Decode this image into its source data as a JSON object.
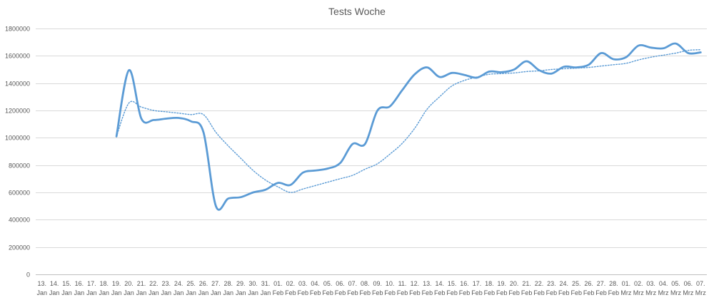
{
  "chart_data": {
    "type": "line",
    "title": "Tests Woche",
    "xlabel": "",
    "ylabel": "",
    "ylim": [
      0,
      1800000
    ],
    "yticks": [
      0,
      200000,
      400000,
      600000,
      800000,
      1000000,
      1200000,
      1400000,
      1600000,
      1800000
    ],
    "ytick_labels": [
      "0",
      "200000",
      "400000",
      "600000",
      "800000",
      "1000000",
      "1200000",
      "1400000",
      "1600000",
      "1800000"
    ],
    "grid": "horizontal",
    "legend": "none",
    "categories": [
      "13. Jan",
      "14. Jan",
      "15. Jan",
      "16. Jan",
      "17. Jan",
      "18. Jan",
      "19. Jan",
      "20. Jan",
      "21. Jan",
      "22. Jan",
      "23. Jan",
      "24. Jan",
      "25. Jan",
      "26. Jan",
      "27. Jan",
      "28. Jan",
      "29. Jan",
      "30. Jan",
      "31. Jan",
      "01. Feb",
      "02. Feb",
      "03. Feb",
      "04. Feb",
      "05. Feb",
      "06. Feb",
      "07. Feb",
      "08. Feb",
      "09. Feb",
      "10. Feb",
      "11. Feb",
      "12. Feb",
      "13. Feb",
      "14. Feb",
      "15. Feb",
      "16. Feb",
      "17. Feb",
      "18. Feb",
      "19. Feb",
      "20. Feb",
      "21. Feb",
      "22. Feb",
      "23. Feb",
      "24. Feb",
      "25. Feb",
      "26. Feb",
      "27. Feb",
      "28. Feb",
      "01. Mrz",
      "02. Mrz",
      "03. Mrz",
      "04. Mrz",
      "05. Mrz",
      "06. Mrz",
      "07. Mrz"
    ],
    "series": [
      {
        "style": "solid",
        "color": "#5b9bd5",
        "values": [
          null,
          null,
          null,
          null,
          null,
          null,
          1010000,
          1495000,
          1140000,
          1130000,
          1140000,
          1145000,
          1120000,
          1040000,
          500000,
          555000,
          565000,
          600000,
          620000,
          670000,
          655000,
          745000,
          760000,
          775000,
          815000,
          955000,
          955000,
          1200000,
          1230000,
          1350000,
          1465000,
          1515000,
          1445000,
          1475000,
          1460000,
          1440000,
          1485000,
          1480000,
          1500000,
          1560000,
          1495000,
          1470000,
          1520000,
          1515000,
          1535000,
          1620000,
          1575000,
          1590000,
          1675000,
          1660000,
          1655000,
          1690000,
          1620000,
          1625000
        ]
      },
      {
        "style": "dotted",
        "color": "#5b9bd5",
        "values": [
          null,
          null,
          null,
          null,
          null,
          null,
          1010000,
          1255000,
          1225000,
          1200000,
          1190000,
          1180000,
          1170000,
          1170000,
          1040000,
          940000,
          850000,
          760000,
          690000,
          640000,
          600000,
          625000,
          650000,
          675000,
          700000,
          725000,
          770000,
          810000,
          880000,
          960000,
          1070000,
          1210000,
          1300000,
          1380000,
          1420000,
          1445000,
          1465000,
          1470000,
          1475000,
          1485000,
          1490000,
          1500000,
          1505000,
          1510000,
          1515000,
          1525000,
          1535000,
          1545000,
          1570000,
          1590000,
          1605000,
          1620000,
          1640000,
          1645000
        ]
      }
    ]
  }
}
